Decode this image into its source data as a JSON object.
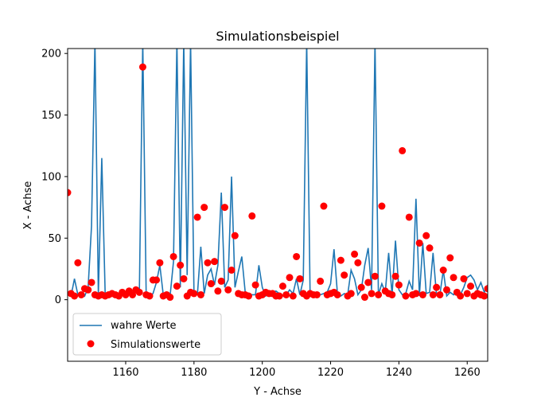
{
  "chart_data": {
    "type": "line",
    "title": "Simulationsbeispiel",
    "xlabel": "Y - Achse",
    "ylabel": "X - Achse",
    "xlim": [
      1143,
      1266
    ],
    "ylim": [
      -50,
      204
    ],
    "xticks": [
      1160,
      1180,
      1200,
      1220,
      1240,
      1260
    ],
    "yticks": [
      0,
      50,
      100,
      150,
      200
    ],
    "grid": false,
    "legend_position": "lower-left",
    "colors": {
      "line": "#1f77b4",
      "points": "#ff0000"
    },
    "series": [
      {
        "name": "wahre Werte",
        "kind": "line",
        "x": [
          1143,
          1144,
          1145,
          1146,
          1147,
          1148,
          1149,
          1150,
          1151,
          1152,
          1153,
          1154,
          1155,
          1156,
          1157,
          1158,
          1159,
          1160,
          1161,
          1162,
          1163,
          1164,
          1165,
          1166,
          1167,
          1168,
          1169,
          1170,
          1171,
          1172,
          1173,
          1174,
          1175,
          1176,
          1177,
          1178,
          1179,
          1180,
          1181,
          1182,
          1183,
          1184,
          1185,
          1186,
          1187,
          1188,
          1189,
          1190,
          1191,
          1192,
          1193,
          1194,
          1195,
          1196,
          1197,
          1198,
          1199,
          1200,
          1201,
          1202,
          1203,
          1204,
          1205,
          1206,
          1207,
          1208,
          1209,
          1210,
          1211,
          1212,
          1213,
          1214,
          1215,
          1216,
          1217,
          1218,
          1219,
          1220,
          1221,
          1222,
          1223,
          1224,
          1225,
          1226,
          1227,
          1228,
          1229,
          1230,
          1231,
          1232,
          1233,
          1234,
          1235,
          1236,
          1237,
          1238,
          1239,
          1240,
          1241,
          1242,
          1243,
          1244,
          1245,
          1246,
          1247,
          1248,
          1249,
          1250,
          1251,
          1252,
          1253,
          1254,
          1255,
          1256,
          1257,
          1258,
          1259,
          1260,
          1261,
          1262,
          1263,
          1264,
          1265,
          1266
        ],
        "y": [
          4,
          3,
          17,
          4,
          6,
          3,
          10,
          60,
          210,
          4,
          115,
          4,
          3,
          4,
          5,
          3,
          4,
          6,
          5,
          4,
          7,
          5,
          210,
          4,
          3,
          5,
          14,
          28,
          4,
          3,
          3,
          31,
          210,
          10,
          210,
          20,
          210,
          5,
          4,
          43,
          5,
          20,
          25,
          12,
          28,
          87,
          10,
          16,
          100,
          10,
          23,
          35,
          6,
          5,
          4,
          4,
          28,
          10,
          3,
          5,
          6,
          7,
          5,
          3,
          4,
          8,
          5,
          17,
          4,
          16,
          210,
          4,
          3,
          5,
          4,
          5,
          6,
          13,
          41,
          5,
          3,
          5,
          4,
          24,
          17,
          4,
          8,
          28,
          42,
          8,
          210,
          4,
          13,
          6,
          38,
          4,
          48,
          8,
          4,
          5,
          15,
          8,
          82,
          3,
          46,
          5,
          6,
          38,
          4,
          4,
          24,
          3,
          6,
          4,
          8,
          4,
          10,
          18,
          20,
          16,
          8,
          14,
          6,
          12
        ]
      },
      {
        "name": "Simulationswerte",
        "kind": "scatter",
        "x": [
          1143,
          1144,
          1145,
          1146,
          1147,
          1148,
          1149,
          1150,
          1151,
          1152,
          1153,
          1154,
          1155,
          1156,
          1157,
          1158,
          1159,
          1160,
          1161,
          1162,
          1163,
          1164,
          1165,
          1166,
          1167,
          1168,
          1169,
          1170,
          1171,
          1172,
          1173,
          1174,
          1175,
          1176,
          1177,
          1178,
          1179,
          1180,
          1181,
          1182,
          1183,
          1184,
          1185,
          1186,
          1187,
          1188,
          1189,
          1190,
          1191,
          1192,
          1193,
          1194,
          1195,
          1196,
          1197,
          1198,
          1199,
          1200,
          1201,
          1202,
          1203,
          1204,
          1205,
          1206,
          1207,
          1208,
          1209,
          1210,
          1211,
          1212,
          1213,
          1214,
          1215,
          1216,
          1217,
          1218,
          1219,
          1220,
          1221,
          1222,
          1223,
          1224,
          1225,
          1226,
          1227,
          1228,
          1229,
          1230,
          1231,
          1232,
          1233,
          1234,
          1235,
          1236,
          1237,
          1238,
          1239,
          1240,
          1241,
          1242,
          1243,
          1244,
          1245,
          1246,
          1247,
          1248,
          1249,
          1250,
          1251,
          1252,
          1253,
          1254,
          1255,
          1256,
          1257,
          1258,
          1259,
          1260,
          1261,
          1262,
          1263,
          1264,
          1265,
          1266
        ],
        "y": [
          87,
          5,
          3,
          30,
          4,
          9,
          8,
          14,
          4,
          3,
          4,
          3,
          4,
          5,
          4,
          3,
          6,
          4,
          7,
          4,
          8,
          6,
          189,
          4,
          3,
          16,
          16,
          30,
          3,
          4,
          2,
          35,
          11,
          28,
          17,
          3,
          6,
          5,
          67,
          4,
          75,
          30,
          13,
          31,
          7,
          15,
          75,
          8,
          24,
          52,
          5,
          4,
          4,
          3,
          68,
          12,
          3,
          4,
          6,
          5,
          5,
          3,
          3,
          11,
          4,
          18,
          3,
          35,
          17,
          5,
          3,
          5,
          4,
          4,
          15,
          76,
          4,
          5,
          6,
          4,
          32,
          20,
          3,
          5,
          37,
          30,
          10,
          2,
          14,
          5,
          19,
          4,
          76,
          7,
          5,
          4,
          19,
          12,
          121,
          3,
          67,
          4,
          5,
          46,
          4,
          52,
          42,
          4,
          10,
          4,
          24,
          8,
          34,
          18,
          6,
          3,
          17,
          5,
          11,
          3,
          5,
          4,
          3,
          9
        ]
      }
    ]
  }
}
